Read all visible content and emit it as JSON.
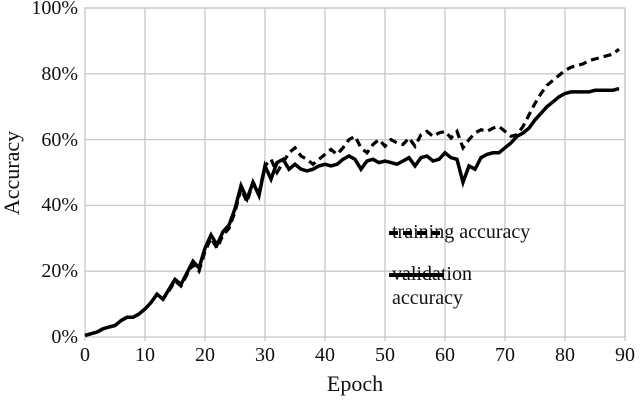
{
  "chart_data": {
    "type": "line",
    "title": "",
    "xlabel": "Epoch",
    "ylabel": "Accuracy",
    "xlim": [
      0,
      90
    ],
    "ylim": [
      0,
      100
    ],
    "xticks": [
      0,
      10,
      20,
      30,
      40,
      50,
      60,
      70,
      80,
      90
    ],
    "xtick_labels": [
      "0",
      "10",
      "20",
      "30",
      "40",
      "50",
      "60",
      "70",
      "80",
      "90"
    ],
    "yticks": [
      0,
      20,
      40,
      60,
      80,
      100
    ],
    "ytick_labels": [
      "0%",
      "20%",
      "40%",
      "60%",
      "80%",
      "100%"
    ],
    "grid": true,
    "legend_position": "inside lower-right",
    "x_start": 0,
    "x_step": 1,
    "series": [
      {
        "name": "training accuracy",
        "style": "dashed",
        "color": "#000000",
        "values": [
          0.5,
          1,
          1.5,
          2.5,
          3,
          3.5,
          5,
          6,
          6,
          7,
          8.5,
          10.5,
          13,
          11.5,
          14,
          17,
          15.5,
          19,
          22,
          20,
          26,
          30,
          27,
          31,
          33,
          38,
          45,
          41,
          47,
          44,
          52,
          54,
          50,
          53,
          56,
          57.5,
          55,
          54,
          52.5,
          54,
          55.5,
          57,
          55.5,
          57.5,
          60,
          61,
          57.5,
          56,
          58.5,
          60,
          58,
          60,
          59,
          58.5,
          60.5,
          58,
          61.5,
          62.5,
          61,
          62,
          62.5,
          60.5,
          62.5,
          57.5,
          60,
          62,
          63,
          62.5,
          63.5,
          64,
          62.5,
          61,
          61.5,
          64,
          67.5,
          71,
          74,
          76.5,
          78,
          79.5,
          81,
          82,
          82.5,
          83,
          84,
          84.5,
          85,
          85.5,
          86,
          87.5
        ]
      },
      {
        "name": "validation accuracy",
        "style": "solid",
        "color": "#000000",
        "values": [
          0.5,
          1,
          1.5,
          2.5,
          3,
          3.5,
          5,
          6,
          6,
          7,
          8.5,
          10.5,
          13,
          11.5,
          14.5,
          17.5,
          16,
          19.5,
          23,
          21,
          27,
          31,
          28,
          32,
          34,
          39,
          46,
          42,
          47,
          43,
          52,
          48,
          53,
          54,
          51,
          52.5,
          51,
          50.5,
          51,
          52,
          52.5,
          52,
          52.5,
          54,
          55,
          54,
          51,
          53.5,
          54,
          53,
          53.5,
          53,
          52.5,
          53.5,
          54.5,
          52,
          54.5,
          55,
          53.5,
          54,
          56,
          54.5,
          54,
          47,
          52,
          51,
          54.5,
          55.5,
          56,
          56,
          57.5,
          59,
          61,
          62,
          63.5,
          66,
          68,
          70,
          71.5,
          73,
          74,
          74.5,
          74.5,
          74.5,
          74.5,
          75,
          75,
          75,
          75,
          75.5
        ]
      }
    ],
    "colors": {
      "line": "#000000",
      "grid": "#c8c8c8",
      "text": "#111111"
    }
  }
}
